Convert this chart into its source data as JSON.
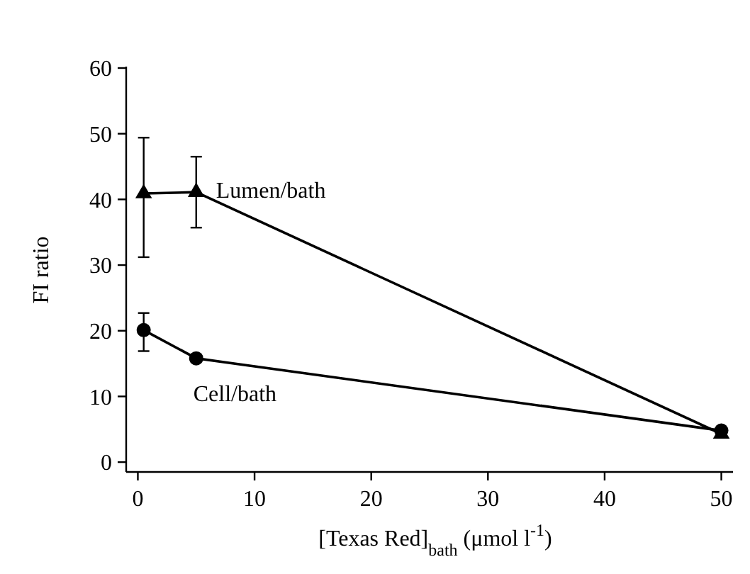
{
  "chart_data": {
    "type": "line",
    "xlabel": "[Texas Red]$_{bath}$ (μmol l$^{-1}$)",
    "ylabel": "FI ratio",
    "xlim": [
      -1,
      51
    ],
    "ylim": [
      -1.5,
      60
    ],
    "xticks": [
      0,
      10,
      20,
      30,
      40,
      50
    ],
    "yticks": [
      0,
      10,
      20,
      30,
      40,
      50,
      60
    ],
    "grid": false,
    "line_style": "solid",
    "series": [
      {
        "name": "Lumen/bath",
        "color": "#000000",
        "marker": "triangle",
        "x": [
          0.5,
          5,
          50
        ],
        "values": [
          40.9,
          41.1,
          4.3
        ],
        "errors": [
          [
            31.2,
            49.4
          ],
          [
            35.7,
            46.5
          ],
          null
        ]
      },
      {
        "name": "Cell/bath",
        "color": "#000000",
        "marker": "circle",
        "x": [
          0.5,
          5,
          50
        ],
        "values": [
          20.1,
          15.8,
          4.8
        ],
        "errors": [
          [
            16.9,
            22.7
          ],
          null,
          null
        ]
      }
    ]
  }
}
